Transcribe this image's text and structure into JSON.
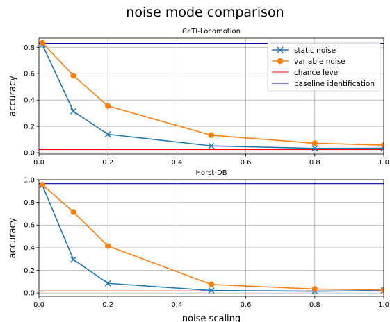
{
  "figure": {
    "title": "noise mode comparison"
  },
  "colors": {
    "static": "#1f77b4",
    "variable": "#ff7f0e",
    "chance": "#ff0000",
    "baseline": "#0000aa",
    "grid": "#b0b0b0"
  },
  "chart_data": [
    {
      "type": "line",
      "title": "CeTI-Locomotion",
      "xlabel": "",
      "ylabel": "accuracy",
      "xlim": [
        0,
        1
      ],
      "ylim": [
        -0.01,
        0.87
      ],
      "xticks": [
        "0.0",
        "0.2",
        "0.4",
        "0.6",
        "0.8",
        "1.0"
      ],
      "yticks": [
        "0.0",
        "0.2",
        "0.4",
        "0.6",
        "0.8"
      ],
      "grid": true,
      "legend_position": "top-right",
      "x": [
        0.01,
        0.1,
        0.2,
        0.5,
        0.8,
        1.0
      ],
      "series": [
        {
          "name": "static noise",
          "marker": "x",
          "values": [
            0.82,
            0.315,
            0.14,
            0.052,
            0.033,
            0.035
          ]
        },
        {
          "name": "variable noise",
          "marker": "o",
          "values": [
            0.835,
            0.585,
            0.355,
            0.133,
            0.072,
            0.058
          ]
        }
      ],
      "reference_lines": [
        {
          "name": "chance level",
          "value": 0.024
        },
        {
          "name": "baseline identification",
          "value": 0.83
        }
      ]
    },
    {
      "type": "line",
      "title": "Horst-DB",
      "xlabel": "noise scaling",
      "ylabel": "accuracy",
      "xlim": [
        0,
        1
      ],
      "ylim": [
        -0.03,
        1.0
      ],
      "xticks": [
        "0.0",
        "0.2",
        "0.4",
        "0.6",
        "0.8",
        "1.0"
      ],
      "yticks": [
        "0.0",
        "0.2",
        "0.4",
        "0.6",
        "0.8",
        "1.0"
      ],
      "grid": true,
      "x": [
        0.01,
        0.1,
        0.2,
        0.5,
        0.8,
        1.0
      ],
      "series": [
        {
          "name": "static noise",
          "marker": "x",
          "values": [
            0.95,
            0.295,
            0.085,
            0.022,
            0.015,
            0.022
          ]
        },
        {
          "name": "variable noise",
          "marker": "o",
          "values": [
            0.955,
            0.715,
            0.415,
            0.075,
            0.035,
            0.028
          ]
        }
      ],
      "reference_lines": [
        {
          "name": "chance level",
          "value": 0.017
        },
        {
          "name": "baseline identification",
          "value": 0.965
        }
      ]
    }
  ]
}
